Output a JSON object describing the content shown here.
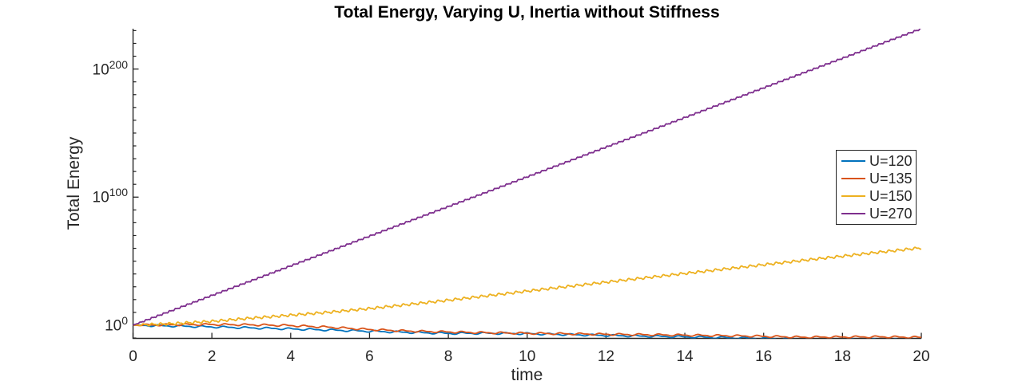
{
  "figure": {
    "background": "#ffffff",
    "axis_color": "#262626",
    "text_color": "#262626"
  },
  "chart_data": {
    "type": "line",
    "title": "Total Energy, Varying U, Inertia without Stiffness",
    "xlabel": "time",
    "ylabel": "Total Energy",
    "y_scale": "log10",
    "xlim": [
      0,
      20
    ],
    "ylim_exponents": [
      -10.3,
      231.5
    ],
    "x_ticks": [
      0,
      2,
      4,
      6,
      8,
      10,
      12,
      14,
      16,
      18,
      20
    ],
    "y_tick_exponents": [
      0,
      100,
      200
    ],
    "y_tick_base": "10",
    "y_minor_tick_step_decades": 10,
    "grid": "off",
    "legend": {
      "position": "right-inside",
      "entries": [
        {
          "label": "U=120",
          "color": "#0072BD"
        },
        {
          "label": "U=135",
          "color": "#D95319"
        },
        {
          "label": "U=150",
          "color": "#EDB120"
        },
        {
          "label": "U=270",
          "color": "#7E2F8E"
        }
      ]
    },
    "t": [
      0,
      1,
      2,
      3,
      4,
      5,
      6,
      7,
      8,
      9,
      10,
      11,
      12,
      13,
      14,
      15,
      16,
      17,
      18,
      19,
      20
    ],
    "series": [
      {
        "name": "U=120",
        "color": "#0072BD",
        "log10_energy": [
          0,
          -0.6,
          -1.3,
          -2.1,
          -2.9,
          -3.8,
          -4.7,
          -5.6,
          -6.4,
          -6.3,
          -6.6,
          -7.3,
          -8.0,
          -8.6,
          -9.1,
          -9.7,
          -10.3,
          -10.9,
          -11.3,
          -11.2,
          -11.6
        ],
        "oscillation": {
          "amplitude_decades": 0.85,
          "period": 0.55,
          "phase": 0
        }
      },
      {
        "name": "U=135",
        "color": "#D95319",
        "log10_energy": [
          0,
          0.4,
          0.5,
          0.3,
          -0.3,
          -1.6,
          -3.4,
          -4.6,
          -5.3,
          -5.9,
          -6.3,
          -6.7,
          -7.1,
          -7.4,
          -7.8,
          -8.2,
          -8.7,
          -9.4,
          -9.2,
          -9.1,
          -9.5
        ],
        "oscillation": {
          "amplitude_decades": 0.85,
          "period": 0.5,
          "phase": 0.25
        }
      },
      {
        "name": "U=150",
        "color": "#EDB120",
        "log10_energy": [
          0,
          1.2,
          3.0,
          5.5,
          7.8,
          10.2,
          13.0,
          16.2,
          19.5,
          23.0,
          26.6,
          30.1,
          33.6,
          37.0,
          40.4,
          43.8,
          47.2,
          50.6,
          53.9,
          57.2,
          60.4
        ],
        "oscillation": {
          "amplitude_decades": 1.1,
          "period": 0.22,
          "phase": 0
        }
      },
      {
        "name": "U=270",
        "color": "#7E2F8E",
        "log10_energy": [
          0,
          11.6,
          23.2,
          34.7,
          46.3,
          57.9,
          69.5,
          81.1,
          92.6,
          104.2,
          115.8,
          127.4,
          139.0,
          150.5,
          162.1,
          173.7,
          185.3,
          196.9,
          208.4,
          220.0,
          231.5
        ],
        "oscillation": {
          "amplitude_decades": 0.7,
          "period": 0.15,
          "phase": 0
        }
      }
    ]
  }
}
